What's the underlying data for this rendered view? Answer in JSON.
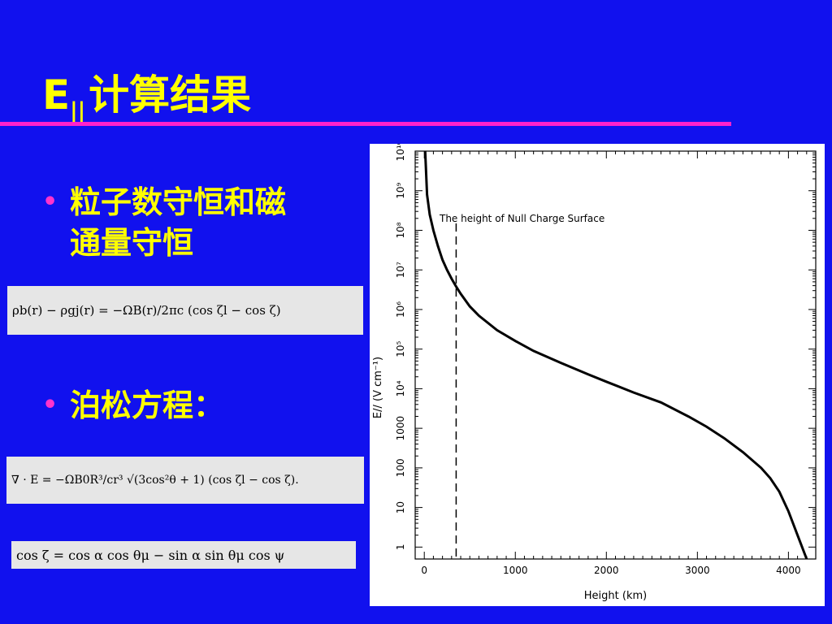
{
  "slide": {
    "title_main": "E",
    "title_sub": "||",
    "title_rest": "计算结果"
  },
  "bullets": [
    {
      "marker": "•",
      "text_line1": "粒子数守恒和磁",
      "text_line2": "通量守恒"
    },
    {
      "marker": "•",
      "text": "泊松方程："
    }
  ],
  "formulas": {
    "f1": "ρb(r) − ρgj(r) = −ΩB(r)/2πc (cos ζl − cos ζ)",
    "f2": "∇ · E = −ΩB0R³/cr³ √(3cos²θ + 1) (cos ζl − cos ζ).",
    "f3": "cos ζ = cos α cos θμ − sin α sin θμ cos ψ"
  },
  "chart_data": {
    "type": "line",
    "title": "",
    "annotation": "The height of Null Charge Surface",
    "xlabel": "Height (km)",
    "ylabel": "E// (V cm⁻¹)",
    "yscale": "log",
    "xlim": [
      -100,
      4300
    ],
    "ylim": [
      0.5,
      10000000000.0
    ],
    "x_ticks": [
      "0",
      "1000",
      "2000",
      "3000",
      "4000"
    ],
    "y_ticks": [
      "1",
      "10",
      "100",
      "1000",
      "10⁴",
      "10⁵",
      "10⁶",
      "10⁷",
      "10⁸",
      "10⁹",
      "10¹⁰"
    ],
    "null_charge_height": 350,
    "series": [
      {
        "x": [
          10,
          30,
          60,
          100,
          150,
          200,
          250,
          300,
          350,
          400,
          500,
          600,
          800,
          1000,
          1200,
          1500,
          1800,
          2000,
          2300,
          2600,
          2900,
          3100,
          3300,
          3500,
          3700,
          3800,
          3900,
          4000,
          4050,
          4100,
          4150,
          4200
        ],
        "y": [
          10000000000.0,
          800000000.0,
          250000000.0,
          100000000.0,
          40000000.0,
          18000000.0,
          10000000.0,
          6000000.0,
          3800000.0,
          2500000.0,
          1200000.0,
          700000.0,
          300000.0,
          160000.0,
          90000.0,
          45000.0,
          23000.0,
          15000.0,
          8000.0,
          4500.0,
          2000.0,
          1100.0,
          550,
          250,
          100,
          55,
          25,
          8,
          4,
          2,
          1,
          0.5
        ]
      }
    ]
  }
}
